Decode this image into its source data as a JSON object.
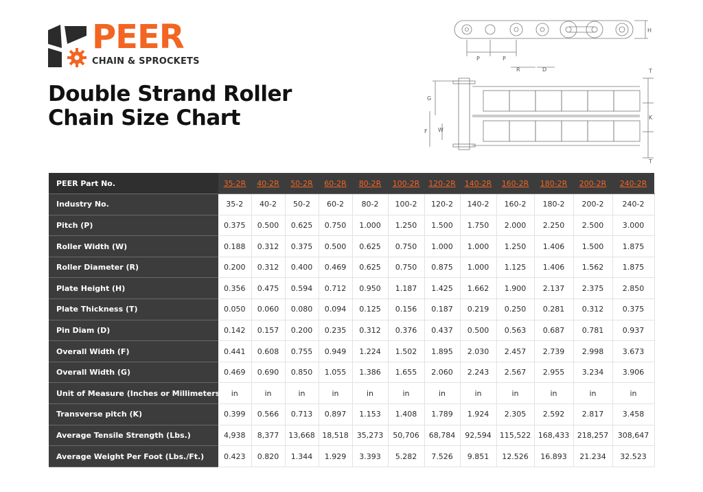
{
  "brand": {
    "name": "PEER",
    "tagline": "CHAIN & SPROCKETS",
    "accent_color": "#f26522",
    "logo_icon": "sprocket-icon"
  },
  "title": {
    "line1": "Double Strand Roller",
    "line2": "Chain Size Chart"
  },
  "diagram_labels": {
    "pitch": "P",
    "plate_height": "H",
    "roller_diameter": "R",
    "pin_diameter": "D",
    "plate_thickness": "T",
    "overall_width_g": "G",
    "transverse_pitch": "K",
    "overall_width_f": "F",
    "roller_width": "W"
  },
  "table": {
    "header_label": "PEER Part No.",
    "part_numbers": [
      "35-2R",
      "40-2R",
      "50-2R",
      "60-2R",
      "80-2R",
      "100-2R",
      "120-2R",
      "140-2R",
      "160-2R",
      "180-2R",
      "200-2R",
      "240-2R"
    ],
    "rows": [
      {
        "label": "Industry No.",
        "values": [
          "35-2",
          "40-2",
          "50-2",
          "60-2",
          "80-2",
          "100-2",
          "120-2",
          "140-2",
          "160-2",
          "180-2",
          "200-2",
          "240-2"
        ]
      },
      {
        "label": "Pitch (P)",
        "values": [
          "0.375",
          "0.500",
          "0.625",
          "0.750",
          "1.000",
          "1.250",
          "1.500",
          "1.750",
          "2.000",
          "2.250",
          "2.500",
          "3.000"
        ]
      },
      {
        "label": "Roller Width (W)",
        "values": [
          "0.188",
          "0.312",
          "0.375",
          "0.500",
          "0.625",
          "0.750",
          "1.000",
          "1.000",
          "1.250",
          "1.406",
          "1.500",
          "1.875"
        ]
      },
      {
        "label": "Roller Diameter (R)",
        "values": [
          "0.200",
          "0.312",
          "0.400",
          "0.469",
          "0.625",
          "0.750",
          "0.875",
          "1.000",
          "1.125",
          "1.406",
          "1.562",
          "1.875"
        ]
      },
      {
        "label": "Plate Height (H)",
        "values": [
          "0.356",
          "0.475",
          "0.594",
          "0.712",
          "0.950",
          "1.187",
          "1.425",
          "1.662",
          "1.900",
          "2.137",
          "2.375",
          "2.850"
        ]
      },
      {
        "label": "Plate Thickness (T)",
        "values": [
          "0.050",
          "0.060",
          "0.080",
          "0.094",
          "0.125",
          "0.156",
          "0.187",
          "0.219",
          "0.250",
          "0.281",
          "0.312",
          "0.375"
        ]
      },
      {
        "label": "Pin Diam (D)",
        "values": [
          "0.142",
          "0.157",
          "0.200",
          "0.235",
          "0.312",
          "0.376",
          "0.437",
          "0.500",
          "0.563",
          "0.687",
          "0.781",
          "0.937"
        ]
      },
      {
        "label": "Overall Width (F)",
        "values": [
          "0.441",
          "0.608",
          "0.755",
          "0.949",
          "1.224",
          "1.502",
          "1.895",
          "2.030",
          "2.457",
          "2.739",
          "2.998",
          "3.673"
        ]
      },
      {
        "label": "Overall Width (G)",
        "values": [
          "0.469",
          "0.690",
          "0.850",
          "1.055",
          "1.386",
          "1.655",
          "2.060",
          "2.243",
          "2.567",
          "2.955",
          "3.234",
          "3.906"
        ]
      },
      {
        "label": "Unit of Measure (Inches or Millimeters)",
        "values": [
          "in",
          "in",
          "in",
          "in",
          "in",
          "in",
          "in",
          "in",
          "in",
          "in",
          "in",
          "in"
        ]
      },
      {
        "label": "Transverse pitch (K)",
        "values": [
          "0.399",
          "0.566",
          "0.713",
          "0.897",
          "1.153",
          "1.408",
          "1.789",
          "1.924",
          "2.305",
          "2.592",
          "2.817",
          "3.458"
        ]
      },
      {
        "label": "Average Tensile Strength (Lbs.)",
        "values": [
          "4,938",
          "8,377",
          "13,668",
          "18,518",
          "35,273",
          "50,706",
          "68,784",
          "92,594",
          "115,522",
          "168,433",
          "218,257",
          "308,647"
        ]
      },
      {
        "label": "Average Weight Per Foot (Lbs./Ft.)",
        "values": [
          "0.423",
          "0.820",
          "1.344",
          "1.929",
          "3.393",
          "5.282",
          "7.526",
          "9.851",
          "12.526",
          "16.893",
          "21.234",
          "32.523"
        ]
      }
    ]
  }
}
